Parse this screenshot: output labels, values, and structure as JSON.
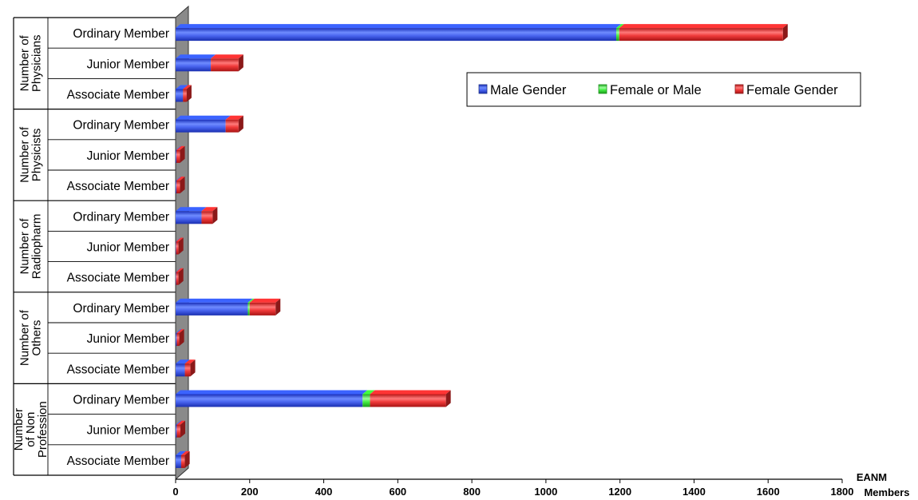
{
  "chart_data": {
    "type": "bar",
    "orientation": "horizontal",
    "stacked": true,
    "xlabel": "EANM Members",
    "xlim": [
      0,
      1800
    ],
    "x_ticks": [
      0,
      200,
      400,
      600,
      800,
      1000,
      1200,
      1400,
      1600,
      1800
    ],
    "grid": false,
    "legend_position": "top-right",
    "groups": [
      {
        "label": "Number of Physicians",
        "lines": [
          "Number of",
          "Physicians"
        ]
      },
      {
        "label": "Number of Physicists",
        "lines": [
          "Number of",
          "Physicists"
        ]
      },
      {
        "label": "Number of Radiopharm",
        "lines": [
          "Number of",
          "Radiopharm"
        ]
      },
      {
        "label": "Number of Others",
        "lines": [
          "Number of",
          "Others"
        ]
      },
      {
        "label": "Number of Non Profession",
        "lines": [
          "Number",
          "of Non",
          "Profession"
        ]
      }
    ],
    "categories": [
      "Ordinary Member",
      "Junior Member",
      "Associate Member",
      "Ordinary Member",
      "Junior Member",
      "Associate Member",
      "Ordinary Member",
      "Junior Member",
      "Associate Member",
      "Ordinary Member",
      "Junior Member",
      "Associate Member",
      "Ordinary Member",
      "Junior Member",
      "Associate Member"
    ],
    "series": [
      {
        "name": "Male Gender",
        "color": "#2f4fe0",
        "values": [
          1190,
          95,
          20,
          135,
          2,
          2,
          70,
          1,
          1,
          195,
          3,
          25,
          505,
          3,
          15
        ]
      },
      {
        "name": "Female or Male",
        "color": "#33ee33",
        "values": [
          8,
          0,
          0,
          0,
          0,
          0,
          0,
          0,
          0,
          5,
          0,
          0,
          20,
          0,
          0
        ]
      },
      {
        "name": "Female Gender",
        "color": "#e82a2a",
        "values": [
          442,
          75,
          10,
          35,
          10,
          10,
          30,
          7,
          7,
          70,
          7,
          15,
          205,
          10,
          10
        ]
      }
    ]
  }
}
